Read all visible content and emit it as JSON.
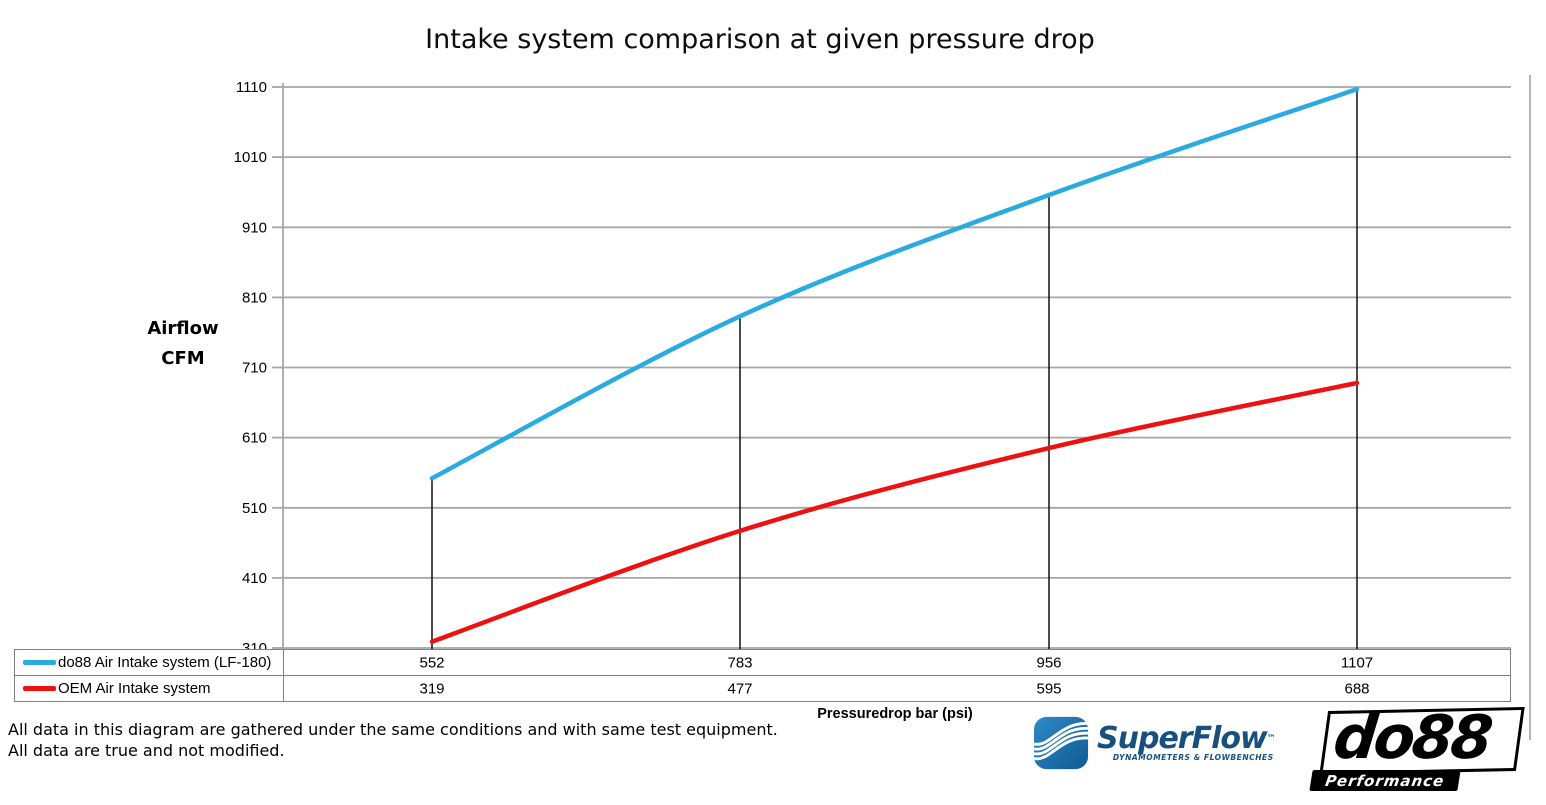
{
  "chart_data": {
    "type": "line",
    "title": "Intake system comparison at given pressure drop",
    "xlabel": "Pressuredrop bar (psi)",
    "ylabel": "Airflow CFM",
    "ylim": [
      310,
      1110
    ],
    "y_ticks": [
      310,
      410,
      510,
      610,
      710,
      810,
      910,
      1010,
      1110
    ],
    "grid": true,
    "legend_position": "bottom-table",
    "num_points": 4,
    "annotations": {
      "vertical_connector_lines_at_data_points": true
    },
    "series": [
      {
        "name": "do88 Air Intake system (LF-180)",
        "color": "#29ABE2",
        "values": [
          552,
          783,
          956,
          1107
        ]
      },
      {
        "name": "OEM Air Intake system",
        "color": "#EE1111",
        "values": [
          319,
          477,
          595,
          688
        ]
      }
    ]
  },
  "axis": {
    "y_label_line1": "Airflow",
    "y_label_line2": "CFM",
    "x_label": "Pressuredrop bar (psi)"
  },
  "footnote": {
    "line1": "All data in this diagram are gathered under the same conditions and with same test equipment.",
    "line2": "All data are true and not modified."
  },
  "logos": {
    "superflow": {
      "name": "SuperFlow",
      "trademark": "™",
      "tagline": "DYNAMOMETERS & FLOWBENCHES",
      "brand_blue": "#17507E",
      "icon_blue": "#1C6FAD"
    },
    "do88": {
      "name": "do88",
      "tagline": "Performance"
    }
  },
  "colors": {
    "gridline": "#A6A6A6",
    "connector_line": "#000000",
    "table_border": "#808080"
  }
}
